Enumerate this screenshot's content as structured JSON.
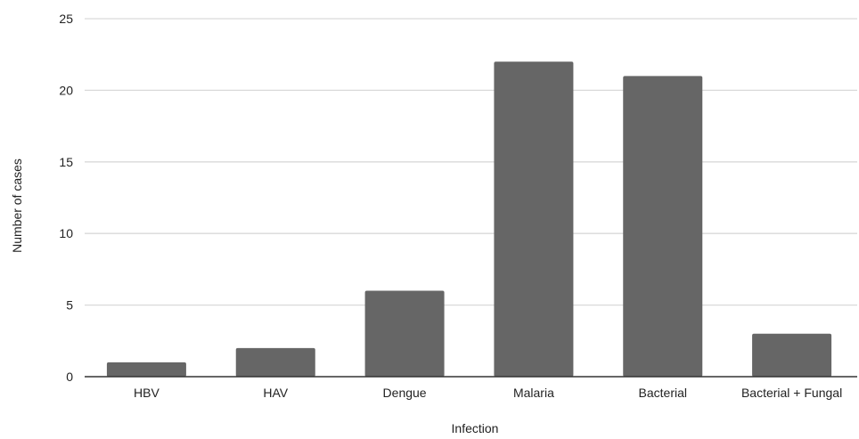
{
  "chart_data": {
    "type": "bar",
    "categories": [
      "HBV",
      "HAV",
      "Dengue",
      "Malaria",
      "Bacterial",
      "Bacterial + Fungal"
    ],
    "values": [
      1,
      2,
      6,
      22,
      21,
      3
    ],
    "title": "",
    "xlabel": "Infection",
    "ylabel": "Number of cases",
    "ylim": [
      0,
      25
    ],
    "yticks": [
      0,
      5,
      10,
      15,
      20,
      25
    ],
    "grid": true,
    "legend": "none",
    "colors": {
      "bar": "#666666",
      "grid": "#d9d9d9",
      "axis": "#333333",
      "text": "#222222"
    }
  }
}
